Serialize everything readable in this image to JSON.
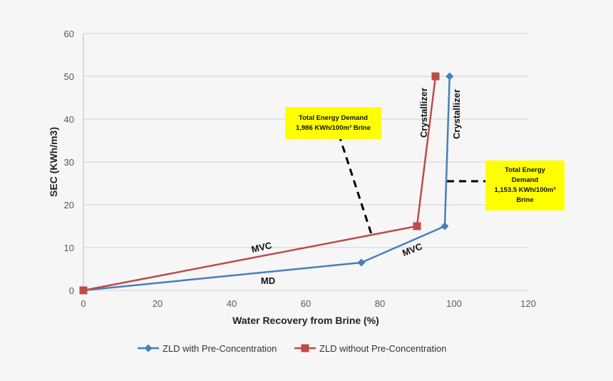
{
  "chart_data": {
    "type": "line",
    "xlabel": "Water Recovery from Brine (%)",
    "ylabel": "SEC (KWh/m3)",
    "xlim": [
      0,
      120
    ],
    "ylim": [
      0,
      60
    ],
    "xticks": [
      0,
      20,
      40,
      60,
      80,
      100,
      120
    ],
    "yticks": [
      0,
      10,
      20,
      30,
      40,
      50,
      60
    ],
    "grid": "horizontal",
    "legend_position": "bottom",
    "series": [
      {
        "name": "ZLD with Pre-Concentration",
        "color": "#4a7ebb",
        "marker": "diamond",
        "x": [
          0,
          75,
          97.5,
          98.8
        ],
        "y": [
          0,
          6.5,
          15,
          50
        ]
      },
      {
        "name": "ZLD without Pre-Concentration",
        "color": "#be4b48",
        "marker": "square",
        "x": [
          0,
          90,
          95
        ],
        "y": [
          0,
          15,
          50
        ]
      }
    ],
    "annotations": {
      "mvc_red": "MVC",
      "md": "MD",
      "mvc_blue": "MVC",
      "cryst_red": "Crystallizer",
      "cryst_blue": "Crystallizer",
      "box1": {
        "line1": "Total Energy Demand",
        "line2": "1,986 KWh/100m³ Brine"
      },
      "box2": {
        "line1": "Total Energy",
        "line2": "Demand",
        "line3": "1,153.5 KWh/100m³",
        "line4": "Brine"
      }
    }
  }
}
